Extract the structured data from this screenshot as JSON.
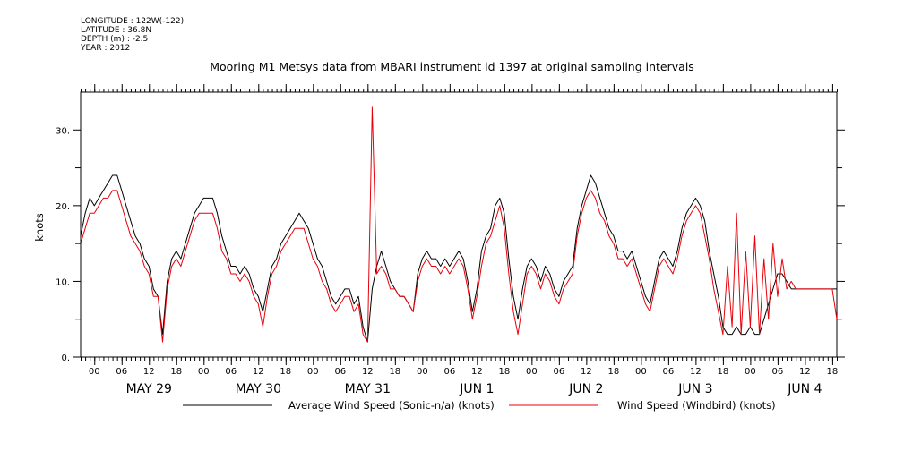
{
  "meta": {
    "longitude": "LONGITUDE : 122W(-122)",
    "latitude": "LATITUDE : 36.8N",
    "depth": "DEPTH (m) : -2.5",
    "year": "YEAR : 2012"
  },
  "chart_data": {
    "type": "line",
    "title": "Mooring M1 Metsys data from MBARI instrument id 1397 at original sampling intervals",
    "ylabel": "knots",
    "xlabel": "",
    "x_unit": "hours since May 28 21:00 (2012)",
    "xlim": [
      0,
      166
    ],
    "ylim": [
      0,
      35
    ],
    "yticks": [
      0,
      10,
      20,
      30
    ],
    "ytick_labels": [
      "0.",
      "10.",
      "20.",
      "30."
    ],
    "hour_ticks": [
      {
        "x": 3,
        "label": "00"
      },
      {
        "x": 9,
        "label": "06"
      },
      {
        "x": 15,
        "label": "12"
      },
      {
        "x": 21,
        "label": "18"
      },
      {
        "x": 27,
        "label": "00"
      },
      {
        "x": 33,
        "label": "06"
      },
      {
        "x": 39,
        "label": "12"
      },
      {
        "x": 45,
        "label": "18"
      },
      {
        "x": 51,
        "label": "00"
      },
      {
        "x": 57,
        "label": "06"
      },
      {
        "x": 63,
        "label": "12"
      },
      {
        "x": 69,
        "label": "18"
      },
      {
        "x": 75,
        "label": "00"
      },
      {
        "x": 81,
        "label": "06"
      },
      {
        "x": 87,
        "label": "12"
      },
      {
        "x": 93,
        "label": "18"
      },
      {
        "x": 99,
        "label": "00"
      },
      {
        "x": 105,
        "label": "06"
      },
      {
        "x": 111,
        "label": "12"
      },
      {
        "x": 117,
        "label": "18"
      },
      {
        "x": 123,
        "label": "00"
      },
      {
        "x": 129,
        "label": "06"
      },
      {
        "x": 135,
        "label": "12"
      },
      {
        "x": 141,
        "label": "18"
      },
      {
        "x": 147,
        "label": "00"
      },
      {
        "x": 153,
        "label": "06"
      },
      {
        "x": 159,
        "label": "12"
      },
      {
        "x": 165,
        "label": "18"
      }
    ],
    "day_labels": [
      {
        "x": 15,
        "label": "MAY 29"
      },
      {
        "x": 39,
        "label": "MAY 30"
      },
      {
        "x": 63,
        "label": "MAY 31"
      },
      {
        "x": 87,
        "label": "JUN  1"
      },
      {
        "x": 111,
        "label": "JUN  2"
      },
      {
        "x": 135,
        "label": "JUN  3"
      },
      {
        "x": 159,
        "label": "JUN  4"
      }
    ],
    "legend_placement": "bottom",
    "series": [
      {
        "name": "Average Wind Speed (Sonic-n/a) (knots)",
        "color": "#000000",
        "x": [
          0,
          1,
          2,
          3,
          4,
          5,
          6,
          7,
          8,
          9,
          10,
          11,
          12,
          13,
          14,
          15,
          16,
          17,
          18,
          19,
          20,
          21,
          22,
          23,
          24,
          25,
          26,
          27,
          28,
          29,
          30,
          31,
          32,
          33,
          34,
          35,
          36,
          37,
          38,
          39,
          40,
          41,
          42,
          43,
          44,
          45,
          46,
          47,
          48,
          49,
          50,
          51,
          52,
          53,
          54,
          55,
          56,
          57,
          58,
          59,
          60,
          61,
          62,
          63,
          64,
          65,
          66,
          67,
          68,
          69,
          70,
          71,
          72,
          73,
          74,
          75,
          76,
          77,
          78,
          79,
          80,
          81,
          82,
          83,
          84,
          85,
          86,
          87,
          88,
          89,
          90,
          91,
          92,
          93,
          94,
          95,
          96,
          97,
          98,
          99,
          100,
          101,
          102,
          103,
          104,
          105,
          106,
          107,
          108,
          109,
          110,
          111,
          112,
          113,
          114,
          115,
          116,
          117,
          118,
          119,
          120,
          121,
          122,
          123,
          124,
          125,
          126,
          127,
          128,
          129,
          130,
          131,
          132,
          133,
          134,
          135,
          136,
          137,
          138,
          139,
          140,
          141,
          142,
          143,
          144,
          145,
          146,
          147,
          148,
          149,
          150,
          151,
          152,
          153,
          154,
          155,
          156,
          157,
          158,
          159,
          160,
          161,
          162,
          163,
          164,
          165,
          166
        ],
        "values": [
          16,
          19,
          21,
          20,
          21,
          22,
          23,
          24,
          24,
          22,
          20,
          18,
          16,
          15,
          13,
          12,
          9,
          8,
          3,
          10,
          13,
          14,
          13,
          15,
          17,
          19,
          20,
          21,
          21,
          21,
          19,
          16,
          14,
          12,
          12,
          11,
          12,
          11,
          9,
          8,
          6,
          9,
          12,
          13,
          15,
          16,
          17,
          18,
          19,
          18,
          17,
          15,
          13,
          12,
          10,
          8,
          7,
          8,
          9,
          9,
          7,
          8,
          4,
          2,
          9,
          12,
          14,
          12,
          10,
          9,
          8,
          8,
          7,
          6,
          11,
          13,
          14,
          13,
          13,
          12,
          13,
          12,
          13,
          14,
          13,
          10,
          6,
          9,
          14,
          16,
          17,
          20,
          21,
          19,
          13,
          8,
          5,
          9,
          12,
          13,
          12,
          10,
          12,
          11,
          9,
          8,
          10,
          11,
          12,
          17,
          20,
          22,
          24,
          23,
          21,
          19,
          17,
          16,
          14,
          14,
          13,
          14,
          12,
          10,
          8,
          7,
          10,
          13,
          14,
          13,
          12,
          14,
          17,
          19,
          20,
          21,
          20,
          18,
          14,
          11,
          8,
          4,
          3,
          3,
          4,
          3,
          3,
          4,
          3,
          3,
          5,
          7,
          9,
          11,
          11,
          10,
          9,
          9,
          9,
          9,
          9,
          9,
          9,
          9,
          9,
          9,
          9
        ]
      },
      {
        "name": "Wind Speed (Windbird) (knots)",
        "color": "#e8000a",
        "x": [
          0,
          1,
          2,
          3,
          4,
          5,
          6,
          7,
          8,
          9,
          10,
          11,
          12,
          13,
          14,
          15,
          16,
          17,
          18,
          19,
          20,
          21,
          22,
          23,
          24,
          25,
          26,
          27,
          28,
          29,
          30,
          31,
          32,
          33,
          34,
          35,
          36,
          37,
          38,
          39,
          40,
          41,
          42,
          43,
          44,
          45,
          46,
          47,
          48,
          49,
          50,
          51,
          52,
          53,
          54,
          55,
          56,
          57,
          58,
          59,
          60,
          61,
          62,
          63,
          64,
          65,
          66,
          67,
          68,
          69,
          70,
          71,
          72,
          73,
          74,
          75,
          76,
          77,
          78,
          79,
          80,
          81,
          82,
          83,
          84,
          85,
          86,
          87,
          88,
          89,
          90,
          91,
          92,
          93,
          94,
          95,
          96,
          97,
          98,
          99,
          100,
          101,
          102,
          103,
          104,
          105,
          106,
          107,
          108,
          109,
          110,
          111,
          112,
          113,
          114,
          115,
          116,
          117,
          118,
          119,
          120,
          121,
          122,
          123,
          124,
          125,
          126,
          127,
          128,
          129,
          130,
          131,
          132,
          133,
          134,
          135,
          136,
          137,
          138,
          139,
          140,
          141,
          142,
          143,
          144,
          145,
          146,
          147,
          148,
          149,
          150,
          151,
          152,
          153,
          154,
          155,
          156,
          157,
          158,
          159,
          160,
          161,
          162,
          163,
          164,
          165,
          166
        ],
        "values": [
          15,
          17,
          19,
          19,
          20,
          21,
          21,
          22,
          22,
          20,
          18,
          16,
          15,
          14,
          12,
          11,
          8,
          8,
          2,
          9,
          12,
          13,
          12,
          14,
          16,
          18,
          19,
          19,
          19,
          19,
          17,
          14,
          13,
          11,
          11,
          10,
          11,
          10,
          8,
          7,
          4,
          8,
          11,
          12,
          14,
          15,
          16,
          17,
          17,
          17,
          15,
          13,
          12,
          10,
          9,
          7,
          6,
          7,
          8,
          8,
          6,
          7,
          3,
          2,
          33,
          11,
          12,
          11,
          9,
          9,
          8,
          8,
          7,
          6,
          10,
          12,
          13,
          12,
          12,
          11,
          12,
          11,
          12,
          13,
          12,
          9,
          5,
          8,
          12,
          15,
          16,
          18,
          20,
          17,
          11,
          6,
          3,
          7,
          11,
          12,
          11,
          9,
          11,
          10,
          8,
          7,
          9,
          10,
          11,
          16,
          19,
          21,
          22,
          21,
          19,
          18,
          16,
          15,
          13,
          13,
          12,
          13,
          11,
          9,
          7,
          6,
          9,
          12,
          13,
          12,
          11,
          13,
          16,
          18,
          19,
          20,
          19,
          16,
          13,
          9,
          6,
          3,
          12,
          4,
          19,
          3,
          14,
          4,
          16,
          3,
          13,
          5,
          15,
          8,
          13,
          9,
          10,
          9,
          9,
          9,
          9,
          9,
          9,
          9,
          9,
          9,
          5
        ]
      }
    ]
  }
}
